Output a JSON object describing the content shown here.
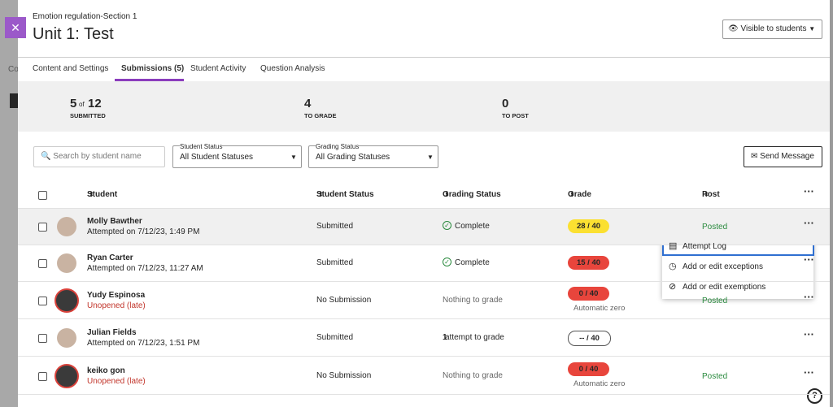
{
  "background": {
    "tab_fragment": "Co"
  },
  "header": {
    "course": "Emotion regulation-Section 1",
    "title": "Unit 1: Test",
    "visibility": "Visible to students"
  },
  "tabs": [
    "Content and Settings",
    "Submissions (5)",
    "Student Activity",
    "Question Analysis"
  ],
  "stats": [
    {
      "value": "5",
      "of": "of",
      "total": "12",
      "label": "SUBMITTED"
    },
    {
      "value": "4",
      "label": "TO GRADE"
    },
    {
      "value": "0",
      "label": "TO POST"
    }
  ],
  "filters": {
    "search_placeholder": "Search by student name",
    "student_status": {
      "label": "Student Status",
      "value": "All Student Statuses"
    },
    "grading_status": {
      "label": "Grading Status",
      "value": "All Grading Statuses"
    },
    "send_message": "Send Message"
  },
  "table": {
    "columns": [
      "Student",
      "Student Status",
      "Grading Status",
      "Grade",
      "Post"
    ],
    "rows": [
      {
        "name": "Molly Bawther",
        "detail": "Attempted on 7/12/23, 1:49 PM",
        "status": "Submitted",
        "grading": "Complete",
        "grade": "28 / 40",
        "post": "Posted"
      },
      {
        "name": "Ryan Carter",
        "detail": "Attempted on 7/12/23, 11:27 AM",
        "status": "Submitted",
        "grading": "Complete",
        "grade": "15 / 40"
      },
      {
        "name": "Yudy Espinosa",
        "detail": "Unopened (late)",
        "status": "No Submission",
        "grading": "Nothing to grade",
        "grade": "0 / 40",
        "grade_note": "Automatic zero",
        "post": "Posted"
      },
      {
        "name": "Julian Fields",
        "detail": "Attempted on 7/12/23, 1:51 PM",
        "status": "Submitted",
        "grading_count": "1",
        "grading": "attempt to grade",
        "grade": "-- / 40"
      },
      {
        "name": "keiko gon",
        "detail": "Unopened (late)",
        "status": "No Submission",
        "grading": "Nothing to grade",
        "grade": "0 / 40",
        "grade_note": "Automatic zero",
        "post": "Posted"
      }
    ]
  },
  "menu": [
    "Attempt Log",
    "Add or edit exceptions",
    "Add or edit exemptions"
  ]
}
